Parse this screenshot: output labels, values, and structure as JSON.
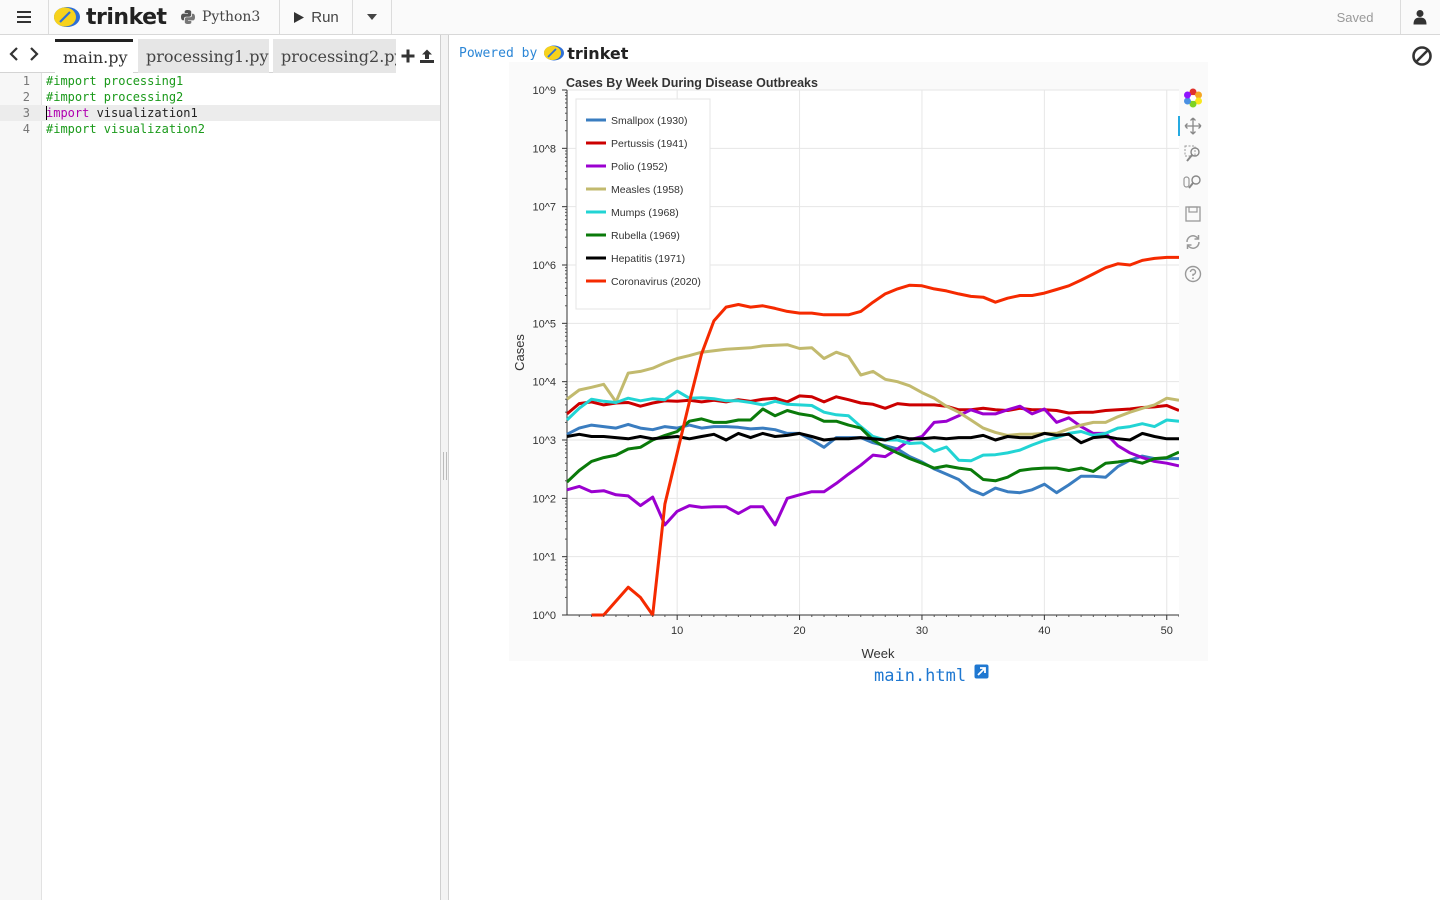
{
  "app": {
    "brand": "trinket",
    "language": "Python3",
    "run_label": "Run",
    "saved_label": "Saved"
  },
  "editor": {
    "tabs": [
      {
        "label": "main.py",
        "active": true
      },
      {
        "label": "processing1.py",
        "active": false
      },
      {
        "label": "processing2.py",
        "active": false
      }
    ],
    "lines": [
      {
        "num": "1",
        "text": "#import processing1"
      },
      {
        "num": "2",
        "text": "#import processing2"
      },
      {
        "num": "3",
        "keyword": "import",
        "rest": " visualization1"
      },
      {
        "num": "4",
        "text": "#import visualization2"
      }
    ]
  },
  "output": {
    "powered_by": "Powered by",
    "powered_brand": "trinket",
    "link_text": "main.html"
  },
  "chart_data": {
    "type": "line",
    "title": "Cases By Week During Disease Outbreaks",
    "xlabel": "Week",
    "ylabel": "Cases",
    "xlim": [
      1,
      51
    ],
    "ylim": [
      1,
      1000000000
    ],
    "yscale": "log",
    "xticks": [
      "10",
      "20",
      "30",
      "40",
      "50"
    ],
    "xtick_values": [
      10,
      20,
      30,
      40,
      50
    ],
    "yticks": [
      "10^0",
      "10^1",
      "10^2",
      "10^3",
      "10^4",
      "10^5",
      "10^6",
      "10^7",
      "10^8",
      "10^9"
    ],
    "grid": true,
    "legend_position": "top-left",
    "series": [
      {
        "name": "Smallpox (1930)",
        "color": "#3a7dc0",
        "x": [
          1,
          2,
          3,
          4,
          5,
          6,
          7,
          8,
          9,
          10,
          11,
          12,
          13,
          14,
          15,
          16,
          17,
          18,
          19,
          20,
          21,
          22,
          23,
          24,
          25,
          26,
          27,
          28,
          29,
          30,
          31,
          32,
          33,
          34,
          35,
          36,
          37,
          38,
          39,
          40,
          41,
          42,
          43,
          44,
          45,
          46,
          47,
          48,
          49,
          50,
          51
        ],
        "y": [
          1250,
          1600,
          1800,
          1700,
          1600,
          1850,
          1600,
          1500,
          1700,
          1600,
          1800,
          1600,
          1700,
          1700,
          1650,
          1550,
          1600,
          1500,
          1300,
          1300,
          1000,
          750,
          1100,
          1100,
          1100,
          900,
          800,
          700,
          520,
          420,
          320,
          260,
          210,
          140,
          115,
          150,
          130,
          125,
          140,
          175,
          125,
          170,
          240,
          240,
          230,
          350,
          450,
          530,
          480,
          480,
          480
        ]
      },
      {
        "name": "Pertussis (1941)",
        "color": "#cc0000",
        "x": [
          1,
          2,
          3,
          4,
          5,
          6,
          7,
          8,
          9,
          10,
          11,
          12,
          13,
          14,
          15,
          16,
          17,
          18,
          19,
          20,
          21,
          22,
          23,
          24,
          25,
          26,
          27,
          28,
          29,
          30,
          31,
          32,
          33,
          34,
          35,
          36,
          37,
          38,
          39,
          40,
          41,
          42,
          43,
          44,
          45,
          46,
          47,
          48,
          49,
          50,
          51
        ],
        "y": [
          2800,
          4200,
          4500,
          4000,
          4300,
          4400,
          3800,
          4300,
          4700,
          4600,
          4800,
          4500,
          4800,
          4500,
          4900,
          4600,
          5000,
          5200,
          4500,
          5700,
          5500,
          4500,
          5500,
          4900,
          4300,
          4100,
          3500,
          4200,
          4000,
          4000,
          4000,
          3800,
          3300,
          3300,
          3500,
          3300,
          3200,
          3500,
          3300,
          3300,
          3200,
          2900,
          3000,
          3000,
          3200,
          3300,
          3400,
          3600,
          3700,
          3900,
          3200
        ]
      },
      {
        "name": "Polio (1952)",
        "color": "#9b00d0",
        "x": [
          1,
          2,
          3,
          4,
          5,
          6,
          7,
          8,
          9,
          10,
          11,
          12,
          13,
          14,
          15,
          16,
          17,
          18,
          19,
          20,
          21,
          22,
          23,
          24,
          25,
          26,
          27,
          28,
          29,
          30,
          31,
          32,
          33,
          34,
          35,
          36,
          37,
          38,
          39,
          40,
          41,
          42,
          43,
          44,
          45,
          46,
          47,
          48,
          49,
          50,
          51
        ],
        "y": [
          140,
          160,
          130,
          135,
          115,
          110,
          75,
          105,
          35,
          60,
          75,
          70,
          72,
          72,
          55,
          72,
          72,
          35,
          100,
          115,
          130,
          130,
          180,
          260,
          370,
          550,
          520,
          700,
          1000,
          1150,
          2000,
          2100,
          2600,
          3300,
          2800,
          2800,
          3300,
          3800,
          2800,
          3400,
          2000,
          2400,
          1700,
          1300,
          1300,
          800,
          600,
          500,
          430,
          400,
          360
        ]
      },
      {
        "name": "Measles (1958)",
        "color": "#c2ba6e",
        "x": [
          1,
          2,
          3,
          4,
          5,
          6,
          7,
          8,
          9,
          10,
          11,
          12,
          13,
          14,
          15,
          16,
          17,
          18,
          19,
          20,
          21,
          22,
          23,
          24,
          25,
          26,
          27,
          28,
          29,
          30,
          31,
          32,
          33,
          34,
          35,
          36,
          37,
          38,
          39,
          40,
          41,
          42,
          43,
          44,
          45,
          46,
          47,
          48,
          49,
          50,
          51
        ],
        "y": [
          5000,
          7200,
          8000,
          9000,
          4500,
          14000,
          15000,
          17000,
          21000,
          25000,
          28000,
          32000,
          34000,
          36000,
          37000,
          38000,
          41000,
          42000,
          43000,
          37000,
          38000,
          25000,
          32000,
          27000,
          13000,
          15000,
          11000,
          10000,
          8500,
          6500,
          5200,
          3800,
          3000,
          2200,
          1600,
          1350,
          1200,
          1250,
          1250,
          1300,
          1300,
          1550,
          1800,
          2000,
          2000,
          2500,
          3000,
          3500,
          4000,
          5200,
          4800
        ]
      },
      {
        "name": "Mumps (1968)",
        "color": "#22d4d4",
        "x": [
          1,
          2,
          3,
          4,
          5,
          6,
          7,
          8,
          9,
          10,
          11,
          12,
          13,
          14,
          15,
          16,
          17,
          18,
          19,
          20,
          21,
          22,
          23,
          24,
          25,
          26,
          27,
          28,
          29,
          30,
          31,
          32,
          33,
          34,
          35,
          36,
          37,
          38,
          39,
          40,
          41,
          42,
          43,
          44,
          45,
          46,
          47,
          48,
          49,
          50,
          51
        ],
        "y": [
          2200,
          3500,
          5000,
          4600,
          4400,
          5200,
          4700,
          5100,
          4900,
          6900,
          5200,
          5300,
          5100,
          4700,
          4700,
          4400,
          4000,
          4600,
          4100,
          4000,
          3900,
          3000,
          2700,
          2600,
          1700,
          1150,
          1000,
          1000,
          870,
          900,
          640,
          760,
          450,
          440,
          550,
          560,
          600,
          670,
          820,
          980,
          1100,
          1300,
          1400,
          1200,
          1300,
          1600,
          1700,
          1900,
          1700,
          2200,
          2100
        ]
      },
      {
        "name": "Rubella (1969)",
        "color": "#0a7a0a",
        "x": [
          1,
          2,
          3,
          4,
          5,
          6,
          7,
          8,
          9,
          10,
          11,
          12,
          13,
          14,
          15,
          16,
          17,
          18,
          19,
          20,
          21,
          22,
          23,
          24,
          25,
          26,
          27,
          28,
          29,
          30,
          31,
          32,
          33,
          34,
          35,
          36,
          37,
          38,
          39,
          40,
          41,
          42,
          43,
          44,
          45,
          46,
          47,
          48,
          49,
          50,
          51
        ],
        "y": [
          190,
          300,
          430,
          500,
          550,
          700,
          750,
          1000,
          1200,
          1400,
          2100,
          2300,
          2000,
          2000,
          2200,
          2200,
          3400,
          2600,
          3200,
          2800,
          2600,
          2100,
          2100,
          1800,
          1600,
          1000,
          750,
          600,
          480,
          400,
          330,
          360,
          330,
          310,
          210,
          200,
          230,
          300,
          320,
          330,
          330,
          300,
          330,
          290,
          400,
          420,
          450,
          400,
          480,
          500,
          620
        ]
      },
      {
        "name": "Hepatitis (1971)",
        "color": "#000000",
        "x": [
          1,
          2,
          3,
          4,
          5,
          6,
          7,
          8,
          9,
          10,
          11,
          12,
          13,
          14,
          15,
          16,
          17,
          18,
          19,
          20,
          21,
          22,
          23,
          24,
          25,
          26,
          27,
          28,
          29,
          30,
          31,
          32,
          33,
          34,
          35,
          36,
          37,
          38,
          39,
          40,
          41,
          42,
          43,
          44,
          45,
          46,
          47,
          48,
          49,
          50,
          51
        ],
        "y": [
          1150,
          1250,
          1150,
          1150,
          1100,
          1050,
          1150,
          1050,
          1100,
          1150,
          1050,
          1150,
          1250,
          1000,
          1300,
          1100,
          1300,
          1150,
          1200,
          1300,
          1150,
          1000,
          1050,
          1050,
          1100,
          1050,
          1000,
          1150,
          1050,
          1050,
          1100,
          1050,
          1100,
          1100,
          1200,
          1000,
          1150,
          1100,
          1100,
          1300,
          1200,
          1250,
          900,
          1100,
          1150,
          1050,
          1000,
          1300,
          1150,
          1050,
          1050
        ]
      },
      {
        "name": "Coronavirus (2020)",
        "color": "#f52a00",
        "x": [
          3,
          4,
          6,
          7,
          8,
          9,
          10,
          11,
          12,
          13,
          14,
          15,
          16,
          17,
          18,
          19,
          20,
          21,
          22,
          23,
          24,
          25,
          26,
          27,
          28,
          29,
          30,
          31,
          32,
          33,
          34,
          35,
          36,
          37,
          38,
          39,
          40,
          41,
          42,
          43,
          44,
          45,
          46,
          47,
          48,
          49,
          50,
          51
        ],
        "y": [
          1,
          1,
          3,
          2,
          1,
          80,
          600,
          4500,
          30000,
          110000,
          190000,
          210000,
          190000,
          200000,
          180000,
          160000,
          150000,
          150000,
          140000,
          140000,
          140000,
          160000,
          230000,
          320000,
          390000,
          450000,
          440000,
          390000,
          360000,
          320000,
          290000,
          280000,
          230000,
          270000,
          300000,
          300000,
          330000,
          380000,
          440000,
          550000,
          700000,
          900000,
          1050000,
          1000000,
          1200000,
          1300000,
          1350000,
          1350000
        ]
      }
    ]
  }
}
